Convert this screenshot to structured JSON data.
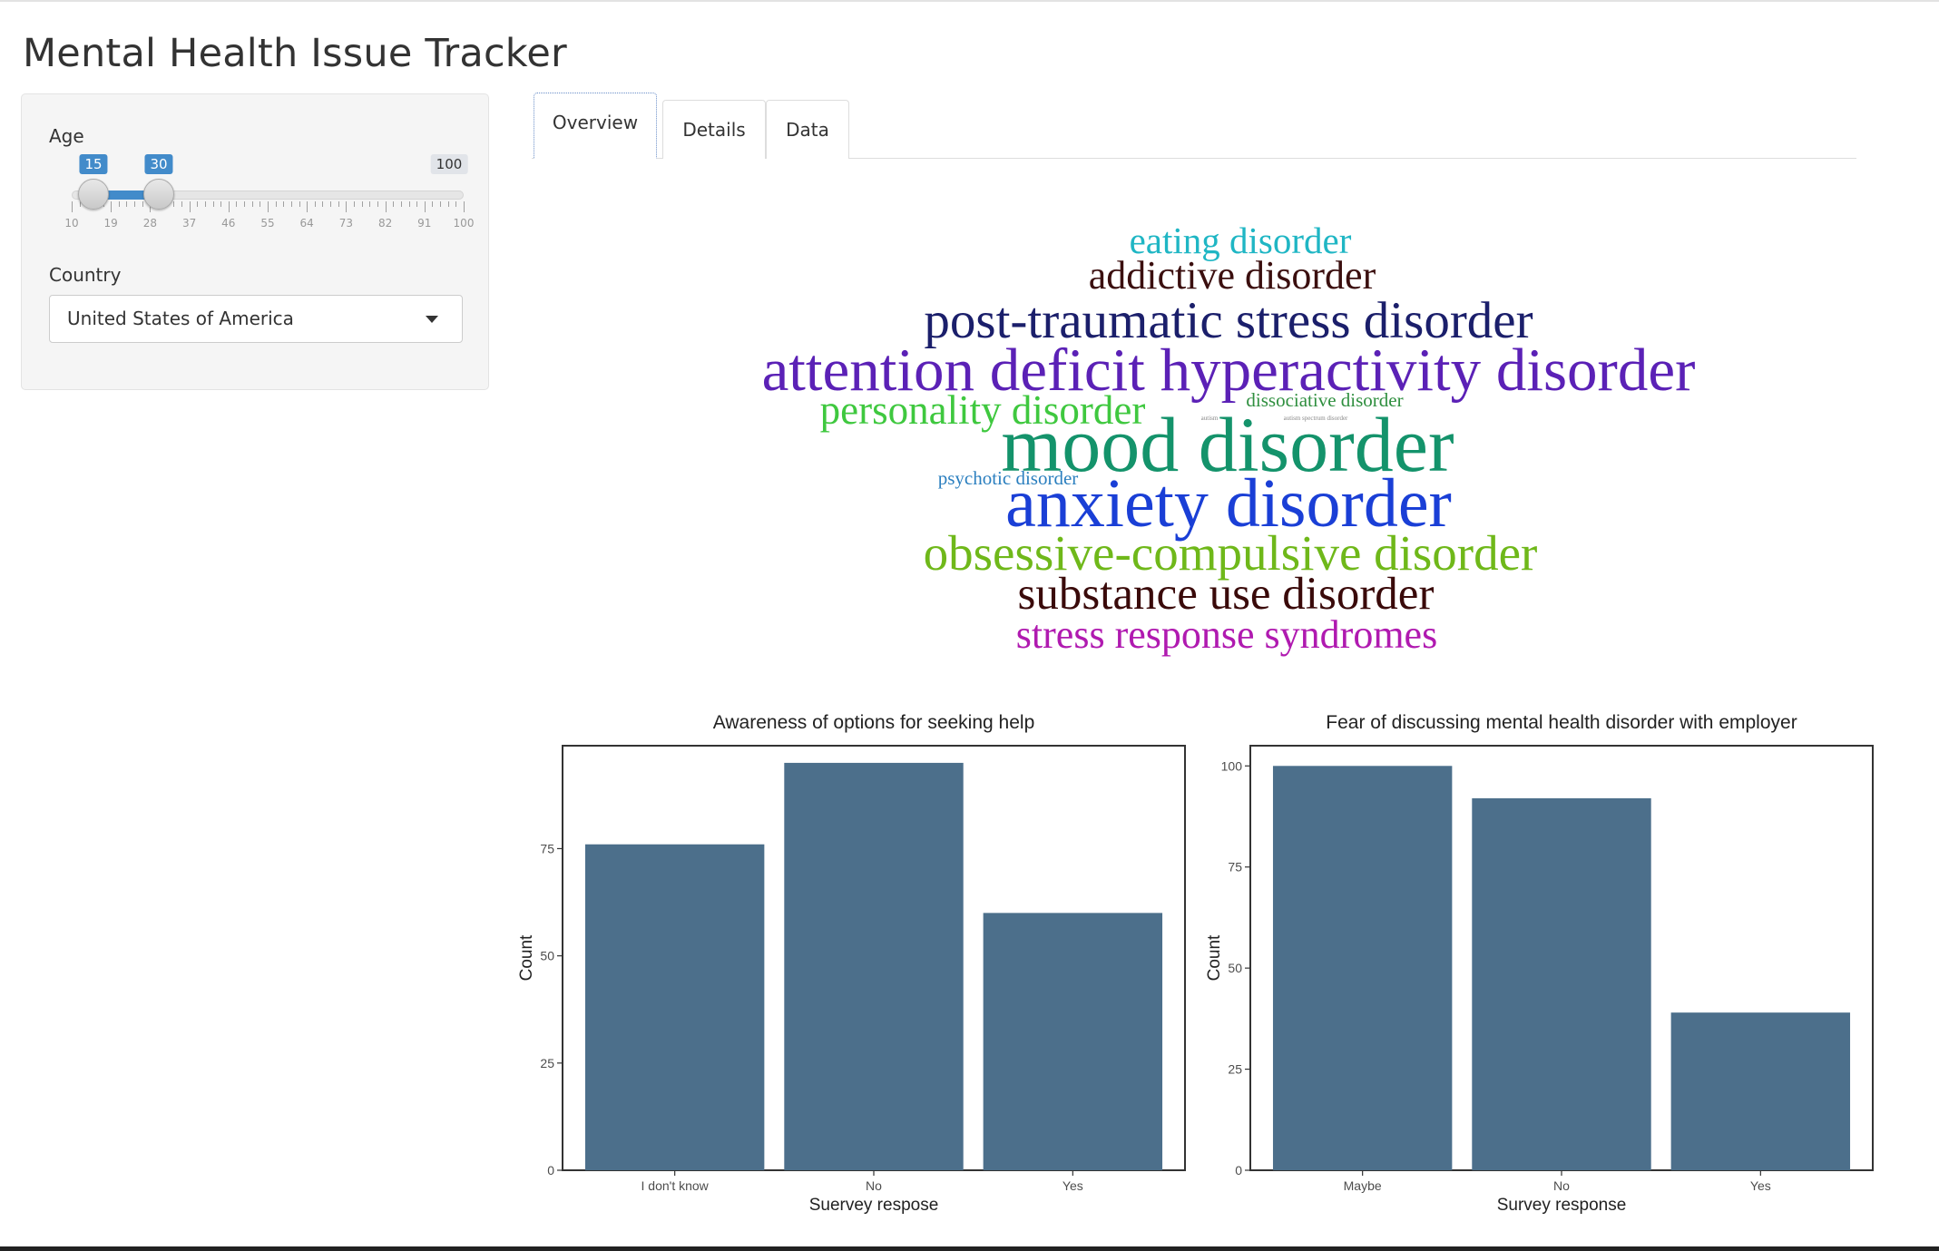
{
  "app": {
    "title": "Mental Health Issue Tracker"
  },
  "sidebar": {
    "age": {
      "label": "Age",
      "min": 10,
      "max": 100,
      "from": 15,
      "to": 30,
      "from_label": "15",
      "to_label": "30",
      "max_label": "100",
      "tick_labels": [
        "10",
        "19",
        "28",
        "37",
        "46",
        "55",
        "64",
        "73",
        "82",
        "91",
        "100"
      ]
    },
    "country": {
      "label": "Country",
      "selected": "United States of America"
    }
  },
  "tabs": [
    {
      "label": "Overview",
      "active": true
    },
    {
      "label": "Details",
      "active": false
    },
    {
      "label": "Data",
      "active": false
    }
  ],
  "wordcloud": {
    "words": [
      {
        "text": "eating disorder",
        "color": "#1fb6c4"
      },
      {
        "text": "addictive disorder",
        "color": "#3b0f0f"
      },
      {
        "text": "post-traumatic stress disorder",
        "color": "#1b1f6b"
      },
      {
        "text": "attention deficit hyperactivity disorder",
        "color": "#5b21b6"
      },
      {
        "text": "personality disorder",
        "color": "#3fc83f"
      },
      {
        "text": "dissociative disorder",
        "color": "#2f8f3f"
      },
      {
        "text": "autism",
        "color": "#888888"
      },
      {
        "text": "autism spectrum disorder",
        "color": "#888888"
      },
      {
        "text": "mood disorder",
        "color": "#14936b"
      },
      {
        "text": "psychotic disorder",
        "color": "#2b7fbf"
      },
      {
        "text": "anxiety disorder",
        "color": "#1a3fd6"
      },
      {
        "text": "obsessive-compulsive disorder",
        "color": "#6fb81a"
      },
      {
        "text": "substance use disorder",
        "color": "#3a0a0a"
      },
      {
        "text": "stress response syndromes",
        "color": "#b01ab0"
      }
    ]
  },
  "chart_data": [
    {
      "type": "bar",
      "title": "Awareness of options for seeking help",
      "xlabel": "Suervey respose",
      "ylabel": "Count",
      "categories": [
        "I don't know",
        "No",
        "Yes"
      ],
      "values": [
        76,
        95,
        60
      ],
      "yticks": [
        0,
        25,
        50,
        75
      ],
      "ylim": [
        0,
        99
      ],
      "bar_color": "#4c6f8b",
      "grid": false
    },
    {
      "type": "bar",
      "title": "Fear of discussing mental health disorder with employer",
      "xlabel": "Survey response",
      "ylabel": "Count",
      "categories": [
        "Maybe",
        "No",
        "Yes"
      ],
      "values": [
        100,
        92,
        39
      ],
      "yticks": [
        0,
        25,
        50,
        75,
        100
      ],
      "ylim": [
        0,
        105
      ],
      "bar_color": "#4c6f8b",
      "grid": false
    }
  ]
}
